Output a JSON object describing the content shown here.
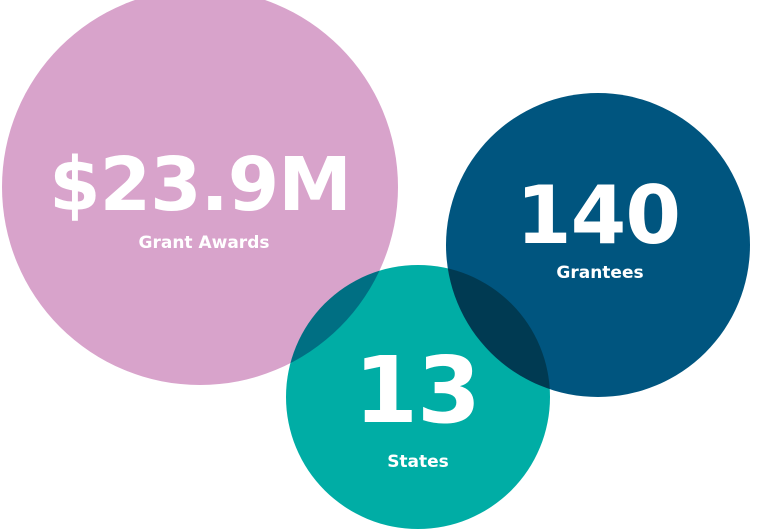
{
  "circles": [
    {
      "value": "$23.9M",
      "label": "Grant Awards"
    },
    {
      "value": "140",
      "label": "Grantees"
    },
    {
      "value": "13",
      "label": "States"
    }
  ]
}
